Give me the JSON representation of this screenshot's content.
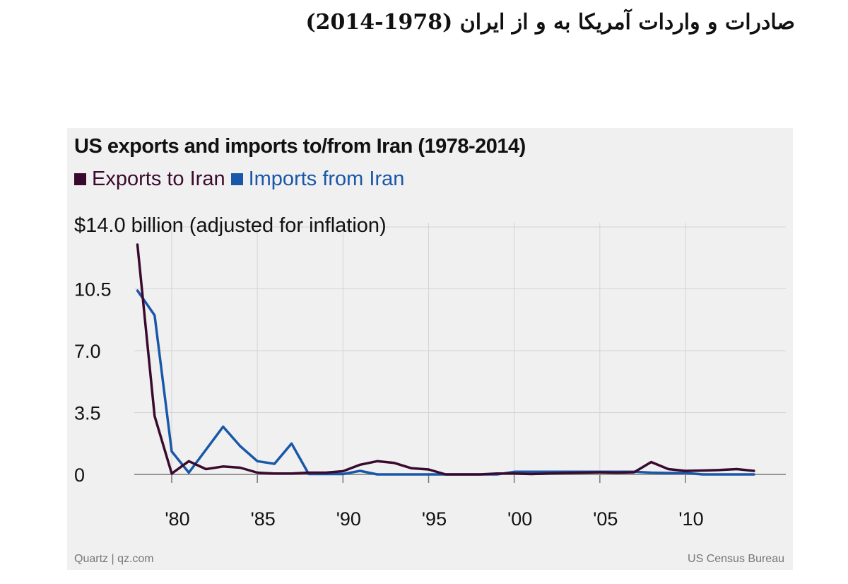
{
  "page_title": "صادرات و واردات آمریکا به و از ایران (1978-2014)",
  "chart_data": {
    "type": "line",
    "title": "US exports and imports to/from Iran (1978-2014)",
    "ylabel": "$14.0 billion (adjusted for inflation)",
    "xlabel": "",
    "ylim": [
      0,
      14
    ],
    "yticks": [
      {
        "value": 0,
        "label": "0"
      },
      {
        "value": 3.5,
        "label": "3.5"
      },
      {
        "value": 7.0,
        "label": "7.0"
      },
      {
        "value": 10.5,
        "label": "10.5"
      }
    ],
    "xlim": [
      1978,
      2014
    ],
    "xticks": [
      {
        "value": 1980,
        "label": "'80"
      },
      {
        "value": 1985,
        "label": "'85"
      },
      {
        "value": 1990,
        "label": "'90"
      },
      {
        "value": 1995,
        "label": "'95"
      },
      {
        "value": 2000,
        "label": "'00"
      },
      {
        "value": 2005,
        "label": "'05"
      },
      {
        "value": 2010,
        "label": "'10"
      }
    ],
    "grid": true,
    "legend_position": "top-left",
    "series": [
      {
        "name": "Exports to Iran",
        "color": "#3a0a2e",
        "points": [
          [
            1978,
            13.0
          ],
          [
            1979,
            3.3
          ],
          [
            1980,
            0.05
          ],
          [
            1981,
            0.75
          ],
          [
            1982,
            0.3
          ],
          [
            1983,
            0.45
          ],
          [
            1984,
            0.38
          ],
          [
            1985,
            0.1
          ],
          [
            1986,
            0.05
          ],
          [
            1987,
            0.05
          ],
          [
            1988,
            0.1
          ],
          [
            1989,
            0.1
          ],
          [
            1990,
            0.18
          ],
          [
            1991,
            0.55
          ],
          [
            1992,
            0.75
          ],
          [
            1993,
            0.65
          ],
          [
            1994,
            0.35
          ],
          [
            1995,
            0.28
          ],
          [
            1996,
            0.0
          ],
          [
            1997,
            0.0
          ],
          [
            1998,
            0.0
          ],
          [
            1999,
            0.05
          ],
          [
            2000,
            0.05
          ],
          [
            2001,
            0.02
          ],
          [
            2002,
            0.05
          ],
          [
            2003,
            0.08
          ],
          [
            2004,
            0.1
          ],
          [
            2005,
            0.12
          ],
          [
            2006,
            0.1
          ],
          [
            2007,
            0.12
          ],
          [
            2008,
            0.7
          ],
          [
            2009,
            0.3
          ],
          [
            2010,
            0.2
          ],
          [
            2011,
            0.22
          ],
          [
            2012,
            0.25
          ],
          [
            2013,
            0.3
          ],
          [
            2014,
            0.2
          ]
        ]
      },
      {
        "name": "Imports from Iran",
        "color": "#1957a8",
        "points": [
          [
            1978,
            10.4
          ],
          [
            1979,
            9.0
          ],
          [
            1980,
            1.3
          ],
          [
            1981,
            0.1
          ],
          [
            1982,
            1.4
          ],
          [
            1983,
            2.7
          ],
          [
            1984,
            1.6
          ],
          [
            1985,
            0.75
          ],
          [
            1986,
            0.6
          ],
          [
            1987,
            1.75
          ],
          [
            1988,
            0.02
          ],
          [
            1989,
            0.02
          ],
          [
            1990,
            0.02
          ],
          [
            1991,
            0.2
          ],
          [
            1992,
            0.0
          ],
          [
            1993,
            0.0
          ],
          [
            1994,
            0.0
          ],
          [
            1995,
            0.0
          ],
          [
            1996,
            0.0
          ],
          [
            1997,
            0.0
          ],
          [
            1998,
            0.0
          ],
          [
            1999,
            0.0
          ],
          [
            2000,
            0.15
          ],
          [
            2001,
            0.15
          ],
          [
            2002,
            0.15
          ],
          [
            2003,
            0.15
          ],
          [
            2004,
            0.15
          ],
          [
            2005,
            0.15
          ],
          [
            2006,
            0.15
          ],
          [
            2007,
            0.15
          ],
          [
            2008,
            0.1
          ],
          [
            2009,
            0.08
          ],
          [
            2010,
            0.08
          ],
          [
            2011,
            0.0
          ],
          [
            2012,
            0.0
          ],
          [
            2013,
            0.0
          ],
          [
            2014,
            0.0
          ]
        ]
      }
    ],
    "source_left": "Quartz | qz.com",
    "source_right": "US Census Bureau"
  }
}
